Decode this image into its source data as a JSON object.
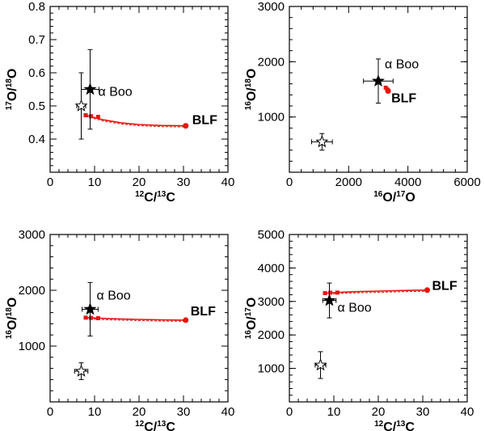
{
  "chart_data": [
    {
      "type": "scatter",
      "xlabel": {
        "sup1": "12",
        "main1": "C/",
        "sup2": "13",
        "main2": "C"
      },
      "ylabel": {
        "sup1": "17",
        "main1": "O/",
        "sup2": "18",
        "main2": "O"
      },
      "xlim": [
        0,
        40
      ],
      "ylim": [
        0.3,
        0.8
      ],
      "xticks": [
        "0",
        "10",
        "20",
        "30",
        "40"
      ],
      "yticks": [
        "0.4",
        "0.5",
        "0.6",
        "0.7",
        "0.8"
      ],
      "xtickvals": [
        0,
        10,
        20,
        30,
        40
      ],
      "ytickvals": [
        0.4,
        0.5,
        0.6,
        0.7,
        0.8
      ],
      "stars": [
        {
          "name": "alpha Boo",
          "filled": true,
          "x": 9,
          "y": 0.55,
          "xerr": 2,
          "yerr": 0.12,
          "label": "α Boo"
        },
        {
          "name": "other star",
          "filled": false,
          "x": 7,
          "y": 0.5,
          "xerr": 1,
          "yerr": 0.1
        }
      ],
      "model_points": [
        {
          "x": 8,
          "y": 0.472
        },
        {
          "x": 9.2,
          "y": 0.469
        },
        {
          "x": 10.8,
          "y": 0.467
        }
      ],
      "model_curve": [
        {
          "x": 8,
          "y": 0.472
        },
        {
          "x": 12,
          "y": 0.458
        },
        {
          "x": 16,
          "y": 0.449
        },
        {
          "x": 20,
          "y": 0.444
        },
        {
          "x": 25,
          "y": 0.441
        },
        {
          "x": 30.5,
          "y": 0.44
        }
      ],
      "model_end": {
        "x": 30.5,
        "y": 0.44,
        "label": "BLF"
      }
    },
    {
      "type": "scatter",
      "xlabel": {
        "sup1": "16",
        "main1": "O/",
        "sup2": "17",
        "main2": "O"
      },
      "ylabel": {
        "sup1": "16",
        "main1": "O/",
        "sup2": "18",
        "main2": "O"
      },
      "xlim": [
        0,
        6000
      ],
      "ylim": [
        0,
        3000
      ],
      "xticks": [
        "0",
        "2000",
        "4000",
        "6000"
      ],
      "yticks": [
        "1000",
        "2000",
        "3000"
      ],
      "xtickvals": [
        0,
        2000,
        4000,
        6000
      ],
      "ytickvals": [
        1000,
        2000,
        3000
      ],
      "stars": [
        {
          "name": "alpha Boo",
          "filled": true,
          "x": 3000,
          "y": 1650,
          "xerr": 500,
          "yerr": 400,
          "label": "α Boo"
        },
        {
          "name": "other star",
          "filled": false,
          "x": 1100,
          "y": 550,
          "xerr": 350,
          "yerr": 150
        }
      ],
      "model_points": [
        {
          "x": 3250,
          "y": 1530
        },
        {
          "x": 3300,
          "y": 1500
        },
        {
          "x": 3330,
          "y": 1480
        }
      ],
      "model_curve": [
        {
          "x": 3250,
          "y": 1530
        },
        {
          "x": 3330,
          "y": 1470
        }
      ],
      "model_end": {
        "x": 3330,
        "y": 1470,
        "label": "BLF"
      }
    },
    {
      "type": "scatter",
      "xlabel": {
        "sup1": "12",
        "main1": "C/",
        "sup2": "13",
        "main2": "C"
      },
      "ylabel": {
        "sup1": "16",
        "main1": "O/",
        "sup2": "18",
        "main2": "O"
      },
      "xlim": [
        0,
        40
      ],
      "ylim": [
        0,
        3000
      ],
      "xticks": [
        "0",
        "10",
        "20",
        "30",
        "40"
      ],
      "yticks": [
        "1000",
        "2000",
        "3000"
      ],
      "xtickvals": [
        0,
        10,
        20,
        30,
        40
      ],
      "ytickvals": [
        1000,
        2000,
        3000
      ],
      "stars": [
        {
          "name": "alpha Boo",
          "filled": true,
          "x": 9,
          "y": 1660,
          "xerr": 1.8,
          "yerr": 480,
          "label": "α Boo"
        },
        {
          "name": "other star",
          "filled": false,
          "x": 7,
          "y": 550,
          "xerr": 1.5,
          "yerr": 150
        }
      ],
      "model_points": [
        {
          "x": 8,
          "y": 1510
        },
        {
          "x": 9.2,
          "y": 1505
        },
        {
          "x": 10.8,
          "y": 1500
        }
      ],
      "model_curve": [
        {
          "x": 8,
          "y": 1510
        },
        {
          "x": 14,
          "y": 1490
        },
        {
          "x": 20,
          "y": 1478
        },
        {
          "x": 25,
          "y": 1470
        },
        {
          "x": 30.5,
          "y": 1465
        }
      ],
      "model_end": {
        "x": 30.5,
        "y": 1465,
        "label": "BLF"
      }
    },
    {
      "type": "scatter",
      "xlabel": {
        "sup1": "12",
        "main1": "C/",
        "sup2": "13",
        "main2": "C"
      },
      "ylabel": {
        "sup1": "16",
        "main1": "O/",
        "sup2": "17",
        "main2": "O"
      },
      "xlim": [
        0,
        40
      ],
      "ylim": [
        0,
        5000
      ],
      "xticks": [
        "0",
        "10",
        "20",
        "30",
        "40"
      ],
      "yticks": [
        "1000",
        "2000",
        "3000",
        "4000",
        "5000"
      ],
      "xtickvals": [
        0,
        10,
        20,
        30,
        40
      ],
      "ytickvals": [
        1000,
        2000,
        3000,
        4000,
        5000
      ],
      "stars": [
        {
          "name": "alpha Boo",
          "filled": true,
          "x": 9,
          "y": 3030,
          "xerr": 1.5,
          "yerr": 520,
          "label": "α Boo"
        },
        {
          "name": "other star",
          "filled": false,
          "x": 7,
          "y": 1100,
          "xerr": 1.2,
          "yerr": 400
        }
      ],
      "model_points": [
        {
          "x": 8,
          "y": 3250
        },
        {
          "x": 9.2,
          "y": 3260
        },
        {
          "x": 10.8,
          "y": 3265
        }
      ],
      "model_curve": [
        {
          "x": 8,
          "y": 3250
        },
        {
          "x": 14,
          "y": 3290
        },
        {
          "x": 20,
          "y": 3310
        },
        {
          "x": 25,
          "y": 3325
        },
        {
          "x": 31,
          "y": 3340
        }
      ],
      "model_end": {
        "x": 31,
        "y": 3340,
        "label": "BLF"
      }
    }
  ]
}
